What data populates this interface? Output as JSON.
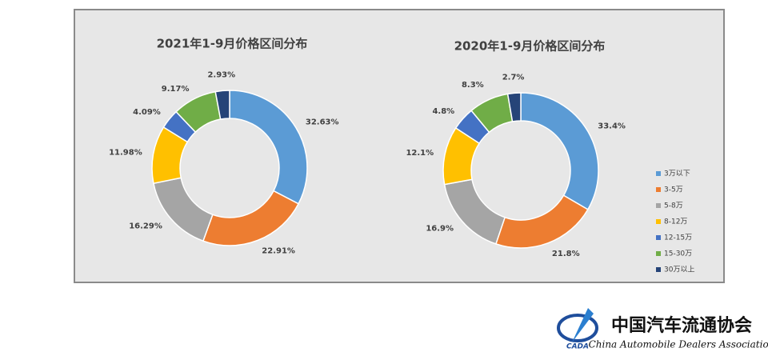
{
  "chart_data": [
    {
      "type": "donut",
      "title": "2021年1-9月价格区间分布",
      "categories": [
        "3万以下",
        "3-5万",
        "5-8万",
        "8-12万",
        "12-15万",
        "15-30万",
        "30万以上"
      ],
      "values": [
        32.63,
        22.91,
        16.29,
        11.98,
        4.09,
        9.17,
        2.93
      ],
      "value_labels": [
        "32.63%",
        "22.91%",
        "16.29%",
        "11.98%",
        "4.09%",
        "9.17%",
        "2.93%"
      ],
      "colors": [
        "#5b9bd5",
        "#ed7d31",
        "#a5a5a5",
        "#ffc000",
        "#4472c4",
        "#70ad47",
        "#264478"
      ]
    },
    {
      "type": "donut",
      "title": "2020年1-9月价格区间分布",
      "categories": [
        "3万以下",
        "3-5万",
        "5-8万",
        "8-12万",
        "12-15万",
        "15-30万",
        "30万以上"
      ],
      "values": [
        33.4,
        21.8,
        16.9,
        12.1,
        4.8,
        8.3,
        2.7
      ],
      "value_labels": [
        "33.4%",
        "21.8%",
        "16.9%",
        "12.1%",
        "4.8%",
        "8.3%",
        "2.7%"
      ],
      "colors": [
        "#5b9bd5",
        "#ed7d31",
        "#a5a5a5",
        "#ffc000",
        "#4472c4",
        "#70ad47",
        "#264478"
      ],
      "legend": "right"
    }
  ],
  "logo": {
    "name": "中国汽车流通协会",
    "abbr": "CADA",
    "english": "China Automobile Dealers Association"
  }
}
